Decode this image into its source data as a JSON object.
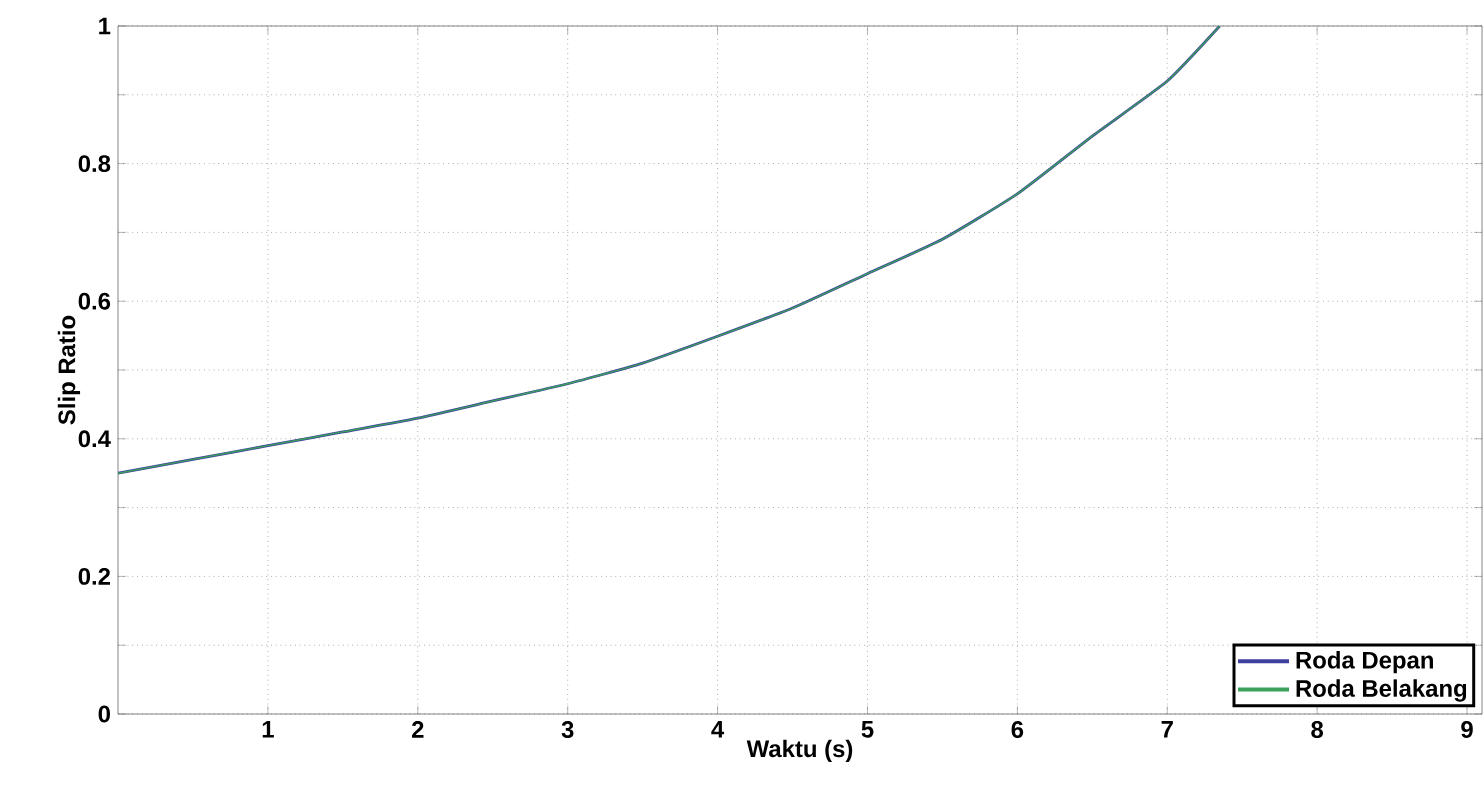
{
  "chart_data": {
    "type": "line",
    "xlabel": "Waktu (s)",
    "ylabel": "Slip Ratio",
    "x": [
      0,
      0.5,
      1,
      1.5,
      2,
      2.5,
      3,
      3.5,
      4,
      4.5,
      5,
      5.5,
      6,
      6.5,
      7,
      7.35
    ],
    "series": [
      {
        "name": "Roda Depan",
        "color": "#3f3f9f",
        "values": [
          0.35,
          0.37,
          0.39,
          0.41,
          0.43,
          0.455,
          0.48,
          0.51,
          0.549,
          0.59,
          0.64,
          0.69,
          0.756,
          0.84,
          0.92,
          1.0
        ]
      },
      {
        "name": "Roda Belakang",
        "color": "#3aa05a",
        "values": [
          0.35,
          0.37,
          0.39,
          0.41,
          0.43,
          0.455,
          0.48,
          0.51,
          0.549,
          0.59,
          0.64,
          0.69,
          0.756,
          0.84,
          0.92,
          1.0
        ]
      }
    ],
    "xlim": [
      0,
      9.1
    ],
    "xticks": [
      1,
      2,
      3,
      4,
      5,
      6,
      7,
      8,
      9
    ],
    "ylim": [
      0,
      1
    ],
    "yticks": [
      0,
      {
        "value": 0.1,
        "label": null
      },
      0.2,
      {
        "value": 0.3,
        "label": null
      },
      0.4,
      {
        "value": 0.5,
        "label": null
      },
      0.6,
      {
        "value": 0.7,
        "label": null
      },
      0.8,
      {
        "value": 0.9,
        "label": null
      },
      1
    ],
    "grid": true,
    "legend": "bottom right",
    "line_style": "solid"
  }
}
